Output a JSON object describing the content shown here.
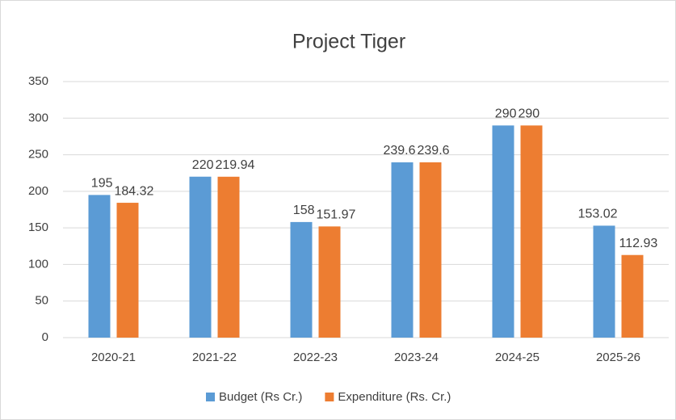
{
  "chart_data": {
    "type": "bar",
    "title": "Project Tiger",
    "categories": [
      "2020-21",
      "2021-22",
      "2022-23",
      "2023-24",
      "2024-25",
      "2025-26"
    ],
    "series": [
      {
        "name": "Budget (Rs Cr.)",
        "color": "#5b9bd5",
        "values": [
          195,
          220,
          158,
          239.6,
          290,
          153.02
        ]
      },
      {
        "name": "Expenditure (Rs. Cr.)",
        "color": "#ed7d31",
        "values": [
          184.32,
          219.94,
          151.97,
          239.6,
          290,
          112.93
        ]
      }
    ],
    "ylim": [
      0,
      350
    ],
    "yticks": [
      0,
      50,
      100,
      150,
      200,
      250,
      300,
      350
    ],
    "grid": true,
    "legend": "bottom"
  }
}
